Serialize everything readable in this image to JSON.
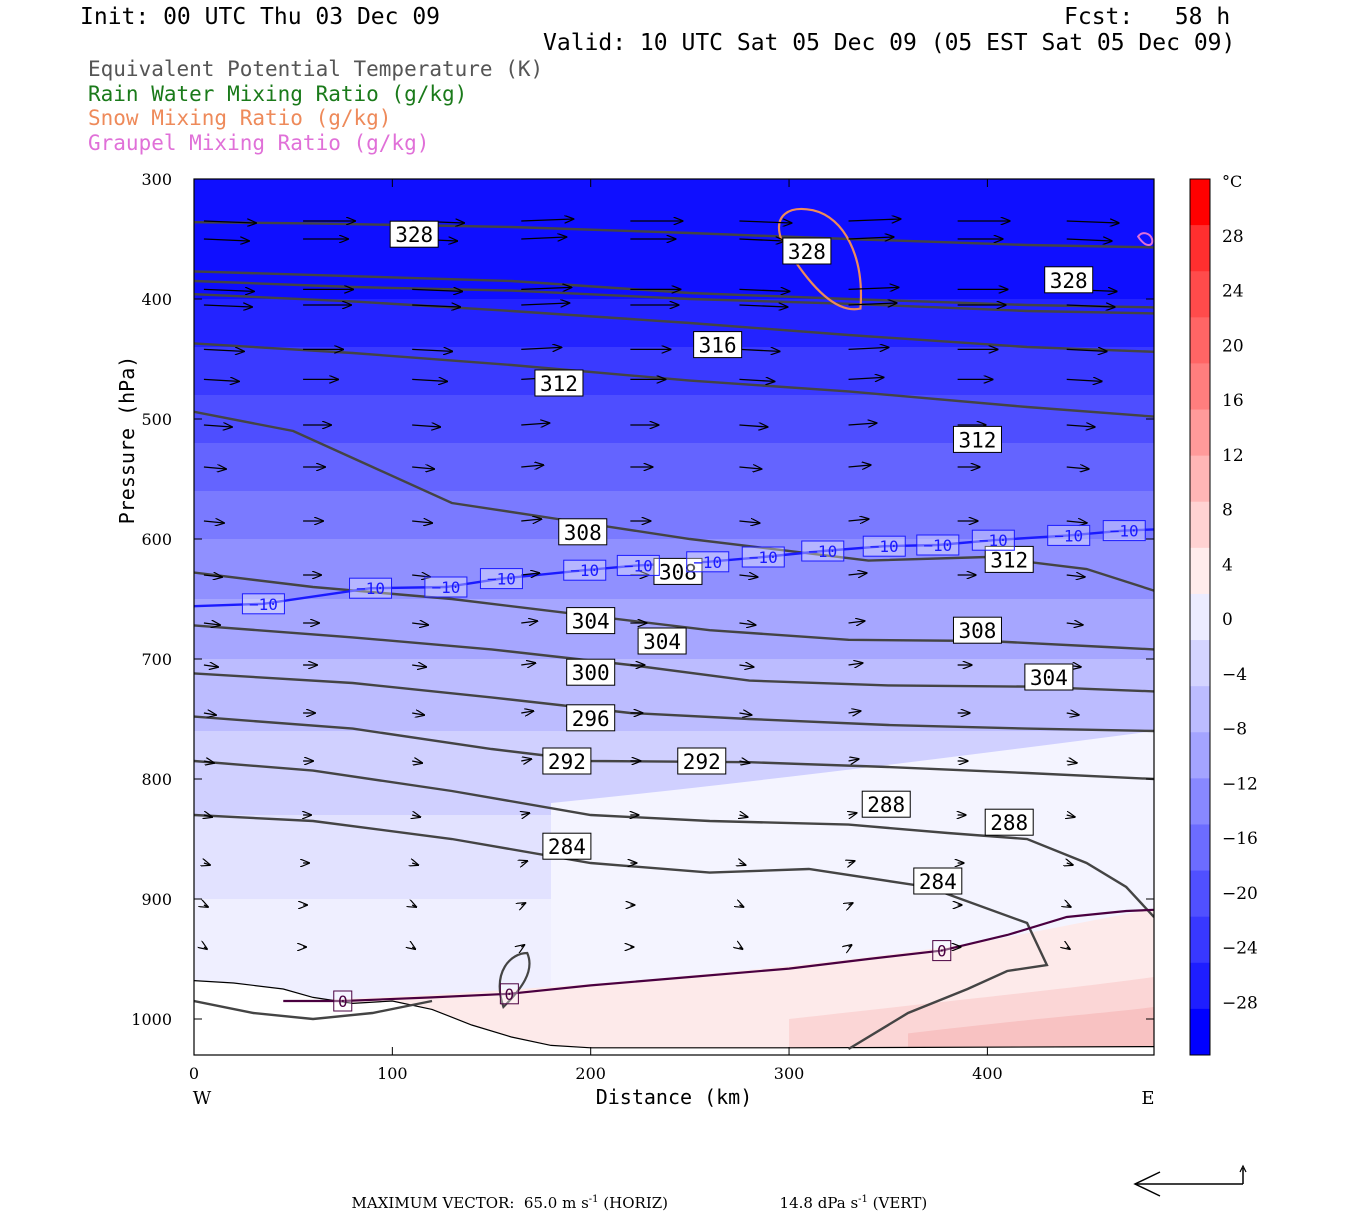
{
  "header": {
    "init": "Init: 00 UTC Thu 03 Dec 09",
    "fcst": "Fcst:   58 h",
    "valid": "Valid: 10 UTC Sat 05 Dec 09 (05 EST Sat 05 Dec 09)"
  },
  "legend": [
    {
      "label": "Equivalent Potential Temperature (K)",
      "color": "#555555"
    },
    {
      "label": "Rain Water Mixing Ratio (g/kg)",
      "color": "#1a7a1a"
    },
    {
      "label": "Snow Mixing Ratio (g/kg)",
      "color": "#ee8a5a"
    },
    {
      "label": "Graupel Mixing Ratio (g/kg)",
      "color": "#e070d8"
    }
  ],
  "footer": {
    "max_vector": "MAXIMUM VECTOR:  65.0 m s",
    "horiz": " (HORIZ)",
    "vert_val": "14.8 dPa s",
    "vert": " (VERT)",
    "exp": "-1"
  },
  "chart_data": {
    "type": "cross-section",
    "xlabel": "Distance (km)",
    "ylabel": "Pressure (hPa)",
    "x_ticks": [
      0,
      100,
      200,
      300,
      400
    ],
    "x_range": [
      0,
      484
    ],
    "y_ticks": [
      300,
      400,
      500,
      600,
      700,
      800,
      900,
      1000
    ],
    "y_range": [
      300,
      1030
    ],
    "x_end_labels": {
      "left": "W",
      "right": "E"
    },
    "colorbar": {
      "unit": "°C",
      "ticks": [
        "28",
        "24",
        "20",
        "16",
        "12",
        "8",
        "4",
        "0",
        "−4",
        "−8",
        "−12",
        "−16",
        "−20",
        "−24",
        "−28"
      ],
      "colors": [
        "#ff0000",
        "#ff2f2f",
        "#ff4b4b",
        "#ff6565",
        "#ff7e7e",
        "#ff9a9a",
        "#ffb6b6",
        "#ffd2d2",
        "#ffecec",
        "#ececff",
        "#d4d4ff",
        "#bcbcff",
        "#a4a4ff",
        "#8888ff",
        "#6c6cff",
        "#5050ff",
        "#3838ff",
        "#1e1eff",
        "#0000ff"
      ]
    },
    "theta_e_labels": [
      {
        "text": "328",
        "x": 111,
        "p": 346
      },
      {
        "text": "328",
        "x": 309,
        "p": 360
      },
      {
        "text": "328",
        "x": 441,
        "p": 384
      },
      {
        "text": "316",
        "x": 264,
        "p": 438
      },
      {
        "text": "312",
        "x": 184,
        "p": 470
      },
      {
        "text": "312",
        "x": 395,
        "p": 517
      },
      {
        "text": "312",
        "x": 411,
        "p": 617
      },
      {
        "text": "308",
        "x": 196,
        "p": 594
      },
      {
        "text": "308",
        "x": 244,
        "p": 627
      },
      {
        "text": "308",
        "x": 395,
        "p": 676
      },
      {
        "text": "304",
        "x": 200,
        "p": 668
      },
      {
        "text": "304",
        "x": 236,
        "p": 685
      },
      {
        "text": "304",
        "x": 431,
        "p": 715
      },
      {
        "text": "300",
        "x": 200,
        "p": 711
      },
      {
        "text": "296",
        "x": 200,
        "p": 749
      },
      {
        "text": "292",
        "x": 188,
        "p": 785
      },
      {
        "text": "292",
        "x": 256,
        "p": 785
      },
      {
        "text": "288",
        "x": 349,
        "p": 821
      },
      {
        "text": "288",
        "x": 411,
        "p": 836
      },
      {
        "text": "284",
        "x": 188,
        "p": 856
      },
      {
        "text": "284",
        "x": 375,
        "p": 885
      }
    ],
    "isotherm_labels": [
      {
        "text": "−10",
        "x": 35,
        "p": 654
      },
      {
        "text": "−10",
        "x": 89,
        "p": 641
      },
      {
        "text": "−10",
        "x": 127,
        "p": 640
      },
      {
        "text": "−10",
        "x": 155,
        "p": 633
      },
      {
        "text": "−10",
        "x": 197,
        "p": 626
      },
      {
        "text": "−10",
        "x": 224,
        "p": 622
      },
      {
        "text": "−10",
        "x": 259,
        "p": 619
      },
      {
        "text": "−10",
        "x": 287,
        "p": 615
      },
      {
        "text": "−10",
        "x": 317,
        "p": 610
      },
      {
        "text": "−10",
        "x": 348,
        "p": 606
      },
      {
        "text": "−10",
        "x": 375,
        "p": 605
      },
      {
        "text": "−10",
        "x": 403,
        "p": 601
      },
      {
        "text": "−10",
        "x": 441,
        "p": 597
      },
      {
        "text": "−10",
        "x": 469,
        "p": 593
      },
      {
        "text": "0",
        "x": 75,
        "p": 985
      },
      {
        "text": "0",
        "x": 159,
        "p": 979
      },
      {
        "text": "0",
        "x": 377,
        "p": 943
      }
    ]
  }
}
